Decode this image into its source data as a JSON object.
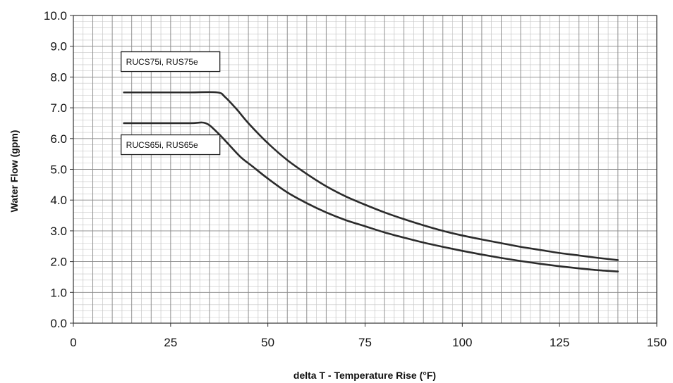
{
  "chart_data": {
    "type": "line",
    "title": "",
    "xlabel": "delta T - Temperature Rise (°F)",
    "ylabel": "Water Flow (gpm)",
    "xlim": [
      0,
      150
    ],
    "ylim": [
      0,
      10
    ],
    "x_ticks": [
      "0",
      "25",
      "50",
      "75",
      "100",
      "125",
      "150"
    ],
    "y_ticks": [
      "0.0",
      "1.0",
      "2.0",
      "3.0",
      "4.0",
      "5.0",
      "6.0",
      "7.0",
      "8.0",
      "9.0",
      "10.0"
    ],
    "grid": true,
    "series": [
      {
        "name": "RUCS75i, RUS75e",
        "x": [
          13,
          20,
          30,
          37,
          39,
          42,
          45,
          50,
          55,
          60,
          65,
          70,
          75,
          80,
          85,
          90,
          95,
          100,
          105,
          110,
          115,
          120,
          125,
          130,
          135,
          140
        ],
        "y": [
          7.5,
          7.5,
          7.5,
          7.5,
          7.35,
          6.95,
          6.5,
          5.85,
          5.3,
          4.85,
          4.45,
          4.12,
          3.85,
          3.6,
          3.38,
          3.18,
          3.0,
          2.85,
          2.72,
          2.6,
          2.48,
          2.38,
          2.28,
          2.2,
          2.12,
          2.05
        ]
      },
      {
        "name": "RUCS65i, RUS65e",
        "x": [
          13,
          20,
          30,
          34,
          37,
          40,
          43,
          46,
          50,
          55,
          60,
          65,
          70,
          75,
          80,
          85,
          90,
          95,
          100,
          105,
          110,
          115,
          120,
          125,
          130,
          135,
          140
        ],
        "y": [
          6.5,
          6.5,
          6.5,
          6.5,
          6.2,
          5.8,
          5.4,
          5.1,
          4.7,
          4.25,
          3.9,
          3.6,
          3.35,
          3.15,
          2.95,
          2.78,
          2.62,
          2.48,
          2.35,
          2.23,
          2.12,
          2.02,
          1.93,
          1.85,
          1.78,
          1.72,
          1.68
        ]
      }
    ],
    "annotations": [
      {
        "text": "RUCS75i, RUS75e",
        "x": 13,
        "y": 8.5
      },
      {
        "text": "RUCS65i, RUS65e",
        "x": 13,
        "y": 5.8
      }
    ]
  }
}
